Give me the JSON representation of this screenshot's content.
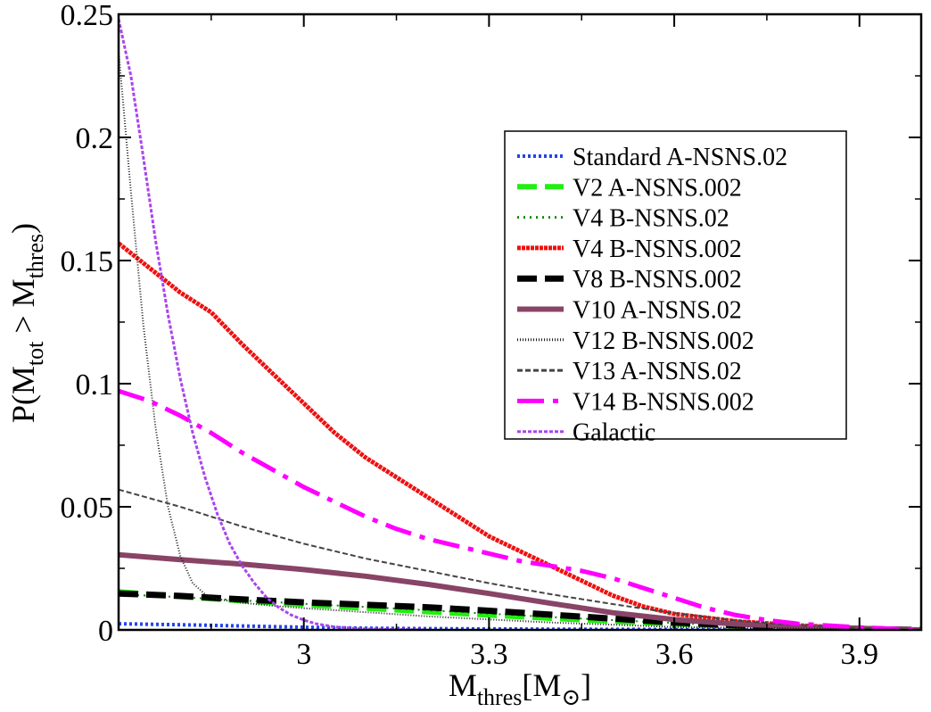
{
  "chart_data": {
    "type": "line",
    "title": "",
    "xlabel": {
      "main": "M",
      "sub": "thres",
      "bracket_open": "[M",
      "sub2": "⊙",
      "bracket_close": "]"
    },
    "ylabel": {
      "p": "P(M",
      "sub1": "tot",
      "gt": " > M",
      "sub2": "thres",
      "close": ")"
    },
    "xlim": [
      2.7,
      4.0
    ],
    "ylim": [
      0,
      0.25
    ],
    "xticks": [
      3,
      3.3,
      3.6,
      3.9
    ],
    "xtick_labels": [
      "3",
      "3.3",
      "3.6",
      "3.9"
    ],
    "yticks": [
      0,
      0.05,
      0.1,
      0.15,
      0.2,
      0.25
    ],
    "ytick_labels": [
      "0",
      "0.05",
      "0.1",
      "0.15",
      "0.2",
      "0.25"
    ],
    "legend_position": "upper-right",
    "series": [
      {
        "name": "Standard A-NSNS.02",
        "color": "#2244ee",
        "style": "hatched",
        "width": 4,
        "x": [
          2.7,
          2.8,
          2.9,
          3.0,
          3.1,
          3.2,
          3.4,
          3.7,
          4.0
        ],
        "y": [
          0.0025,
          0.0021,
          0.0016,
          0.0011,
          0.0007,
          0.0005,
          0.0003,
          0.0001,
          0.0
        ]
      },
      {
        "name": "V2 A-NSNS.002",
        "color": "#22ee11",
        "style": "dashed",
        "width": 6,
        "x": [
          2.7,
          2.75,
          2.8,
          2.9,
          3.0,
          3.1,
          3.2,
          3.3,
          3.4,
          3.5,
          3.6,
          3.7,
          3.8,
          3.9,
          4.0
        ],
        "y": [
          0.0155,
          0.0145,
          0.0135,
          0.0118,
          0.0102,
          0.0088,
          0.0074,
          0.006,
          0.0047,
          0.0035,
          0.0024,
          0.0015,
          0.0008,
          0.0003,
          0.0
        ]
      },
      {
        "name": "V4 B-NSNS.02",
        "color": "#118811",
        "style": "xmarks",
        "width": 2,
        "x": [
          2.7,
          2.8,
          2.9,
          3.0,
          3.1,
          3.2,
          3.3,
          3.4,
          3.5,
          3.6,
          3.7,
          3.8,
          3.9,
          4.0
        ],
        "y": [
          0.0145,
          0.0133,
          0.012,
          0.0106,
          0.0093,
          0.008,
          0.0066,
          0.0052,
          0.004,
          0.0028,
          0.0018,
          0.001,
          0.0004,
          0.0
        ]
      },
      {
        "name": "V4 B-NSNS.002",
        "color": "#ee1111",
        "style": "beaded",
        "width": 5,
        "x": [
          2.7,
          2.75,
          2.8,
          2.85,
          2.9,
          2.95,
          3.0,
          3.05,
          3.1,
          3.15,
          3.2,
          3.25,
          3.3,
          3.35,
          3.4,
          3.45,
          3.5,
          3.55,
          3.6,
          3.7,
          3.8,
          3.9,
          4.0
        ],
        "y": [
          0.157,
          0.147,
          0.137,
          0.129,
          0.116,
          0.104,
          0.092,
          0.08,
          0.07,
          0.062,
          0.054,
          0.046,
          0.038,
          0.032,
          0.026,
          0.02,
          0.014,
          0.0095,
          0.0065,
          0.0035,
          0.0018,
          0.0008,
          0.0
        ]
      },
      {
        "name": "V8 B-NSNS.002",
        "color": "#000000",
        "style": "dashed",
        "width": 7,
        "x": [
          2.7,
          2.8,
          2.9,
          3.0,
          3.1,
          3.2,
          3.3,
          3.4,
          3.5,
          3.6,
          3.7,
          3.8,
          3.9,
          4.0
        ],
        "y": [
          0.0148,
          0.0138,
          0.0124,
          0.0112,
          0.0102,
          0.0092,
          0.0078,
          0.0062,
          0.0046,
          0.003,
          0.0018,
          0.001,
          0.0004,
          0.0
        ]
      },
      {
        "name": "V10 A-NSNS.02",
        "color": "#884466",
        "style": "solid",
        "width": 6,
        "x": [
          2.7,
          2.8,
          2.9,
          3.0,
          3.1,
          3.2,
          3.3,
          3.4,
          3.5,
          3.6,
          3.7,
          3.8,
          3.9,
          4.0
        ],
        "y": [
          0.0305,
          0.0285,
          0.0267,
          0.0245,
          0.0218,
          0.0185,
          0.0148,
          0.0108,
          0.007,
          0.0042,
          0.0024,
          0.0013,
          0.0006,
          0.0
        ]
      },
      {
        "name": "V12 B-NSNS.002",
        "color": "#222222",
        "style": "ticked",
        "width": 2,
        "x": [
          2.7,
          2.72,
          2.74,
          2.76,
          2.78,
          2.8,
          2.82,
          2.84,
          2.86,
          2.9,
          2.95,
          3.0,
          3.1,
          3.2,
          3.4,
          3.6,
          4.0
        ],
        "y": [
          0.235,
          0.178,
          0.124,
          0.082,
          0.05,
          0.03,
          0.019,
          0.0145,
          0.0125,
          0.011,
          0.0098,
          0.0088,
          0.0072,
          0.0055,
          0.003,
          0.0012,
          0.0
        ]
      },
      {
        "name": "V13 A-NSNS.02",
        "color": "#444444",
        "style": "wavy",
        "width": 2,
        "x": [
          2.7,
          2.8,
          2.9,
          3.0,
          3.1,
          3.2,
          3.3,
          3.4,
          3.5,
          3.6,
          3.7,
          3.8,
          3.9,
          4.0
        ],
        "y": [
          0.057,
          0.05,
          0.042,
          0.035,
          0.029,
          0.024,
          0.019,
          0.0145,
          0.0105,
          0.0068,
          0.0038,
          0.0018,
          0.0007,
          0.0
        ]
      },
      {
        "name": "V14 B-NSNS.002",
        "color": "#ff00ff",
        "style": "dashdot",
        "width": 5,
        "x": [
          2.7,
          2.75,
          2.8,
          2.85,
          2.9,
          2.95,
          3.0,
          3.05,
          3.1,
          3.15,
          3.2,
          3.25,
          3.3,
          3.35,
          3.4,
          3.45,
          3.5,
          3.55,
          3.6,
          3.65,
          3.7,
          3.75,
          3.8,
          3.9,
          4.0
        ],
        "y": [
          0.097,
          0.093,
          0.087,
          0.08,
          0.072,
          0.065,
          0.058,
          0.052,
          0.046,
          0.041,
          0.037,
          0.034,
          0.031,
          0.028,
          0.026,
          0.024,
          0.021,
          0.017,
          0.013,
          0.009,
          0.006,
          0.004,
          0.0025,
          0.001,
          0.0
        ]
      },
      {
        "name": "Galactic",
        "color": "#aa44ee",
        "style": "chain",
        "width": 3,
        "x": [
          2.7,
          2.72,
          2.74,
          2.76,
          2.78,
          2.8,
          2.82,
          2.84,
          2.86,
          2.88,
          2.9,
          2.92,
          2.94,
          2.96,
          2.98,
          3.0,
          3.02,
          3.05,
          3.1,
          3.2
        ],
        "y": [
          0.248,
          0.225,
          0.192,
          0.158,
          0.128,
          0.102,
          0.08,
          0.062,
          0.047,
          0.035,
          0.026,
          0.019,
          0.013,
          0.009,
          0.006,
          0.004,
          0.0025,
          0.0012,
          0.0004,
          0.0
        ]
      }
    ]
  }
}
